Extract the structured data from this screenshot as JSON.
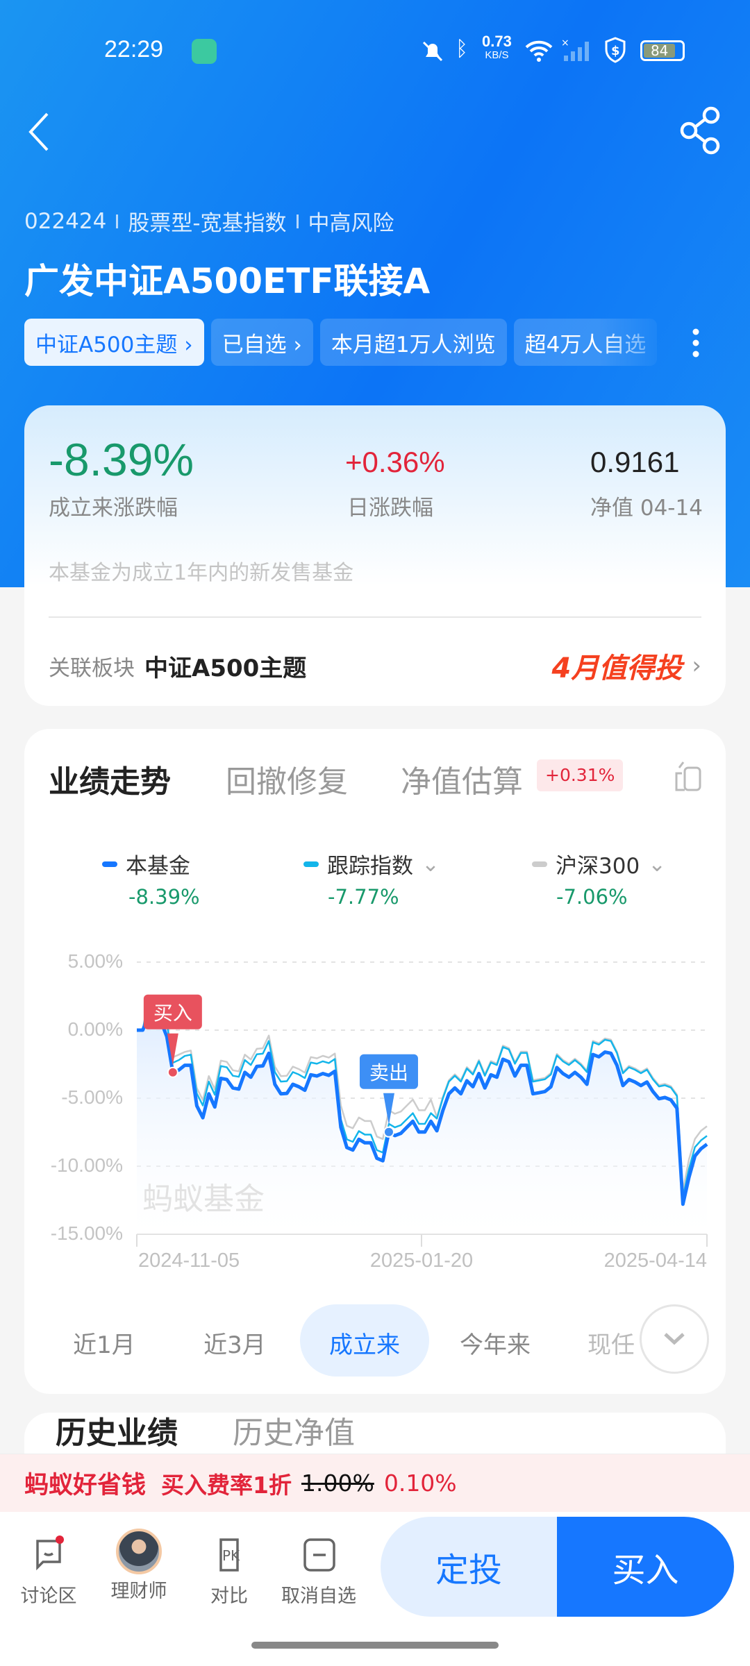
{
  "status_bar": {
    "time": "22:29",
    "net_speed": "0.73",
    "net_unit": "KB/S",
    "battery": "84"
  },
  "header": {
    "fund_code": "022424",
    "fund_type": "股票型-宽基指数",
    "risk": "中高风险",
    "title": "广发中证A500ETF联接A",
    "tags": [
      {
        "label": "中证A500主题 ›"
      },
      {
        "label": "已自选 ›"
      },
      {
        "label": "本月超1万人浏览"
      },
      {
        "label": "超4万人自选"
      }
    ]
  },
  "summary": {
    "since_inception": {
      "value": "-8.39%",
      "label": "成立来涨跌幅"
    },
    "daily": {
      "value": "+0.36%",
      "label": "日涨跌幅"
    },
    "nav": {
      "value": "0.9161",
      "label": "净值 04-14"
    },
    "note": "本基金为成立1年内的新发售基金",
    "sector_label": "关联板块",
    "sector_value": "中证A500主题",
    "promo": "4月值得投"
  },
  "chart_tabs": [
    {
      "label": "业绩走势",
      "active": true
    },
    {
      "label": "回撤修复"
    },
    {
      "label": "净值估算",
      "badge": "+0.31%"
    }
  ],
  "legend": [
    {
      "name": "本基金",
      "value": "-8.39%",
      "color": "#1677ff"
    },
    {
      "name": "跟踪指数",
      "value": "-7.77%",
      "color": "#13b5ea"
    },
    {
      "name": "沪深300",
      "value": "-7.06%",
      "color": "#cccccc"
    }
  ],
  "watermark": "蚂蚁基金",
  "chart_data": {
    "type": "line",
    "ylim": [
      -15,
      5
    ],
    "y_ticks": [
      "5.00%",
      "0.00%",
      "-5.00%",
      "-10.00%",
      "-15.00%"
    ],
    "y_tick_values": [
      5,
      0,
      -5,
      -10,
      -15
    ],
    "x_ticks": [
      "2024-11-05",
      "2025-01-20",
      "2025-04-14"
    ],
    "grid": true,
    "series": [
      {
        "name": "本基金",
        "color": "#1677ff",
        "values": [
          0,
          0,
          1.1,
          0.23,
          0.67,
          -0.47,
          -3.1,
          -2.93,
          -2.58,
          -2.58,
          -5.56,
          -6.44,
          -4.68,
          -5.65,
          -3.54,
          -3.63,
          -4.25,
          -4.33,
          -3.1,
          -3.46,
          -2.67,
          -2.63,
          -1.7,
          -3.98,
          -4.68,
          -4.65,
          -3.98,
          -4.16,
          -4.42,
          -3.28,
          -3.37,
          -3.19,
          -3.32,
          -3.02,
          -7.14,
          -8.63,
          -8.81,
          -8.02,
          -8.28,
          -8.28,
          -9.42,
          -9.6,
          -7.49,
          -7.75,
          -7.58,
          -7.14,
          -6.7,
          -7.49,
          -7.49,
          -6.7,
          -7.4,
          -5.91,
          -4.68,
          -4.25,
          -4.68,
          -3.72,
          -4.16,
          -3.19,
          -4.25,
          -3.28,
          -3.46,
          -2.14,
          -2.32,
          -3.37,
          -2.58,
          -2.58,
          -4.68,
          -4.6,
          -4.51,
          -4.16,
          -2.75,
          -3.19,
          -3.46,
          -3.1,
          -3.46,
          -3.98,
          -1.79,
          -1.96,
          -1.61,
          -1.7,
          -2.58,
          -4.07,
          -3.63,
          -3.81,
          -4.07,
          -3.81,
          -4.51,
          -5.04,
          -4.95,
          -5.12,
          -5.74,
          -12.79,
          -10.82,
          -9.25,
          -8.72,
          -8.39
        ]
      },
      {
        "name": "跟踪指数",
        "color": "#13b5ea",
        "values": [
          0,
          0,
          2.5,
          1.6,
          1.9,
          0.6,
          -2.4,
          -2.2,
          -1.9,
          -1.8,
          -4.66,
          -5.54,
          -3.78,
          -4.75,
          -2.64,
          -2.73,
          -3.35,
          -3.43,
          -2.2,
          -2.56,
          -1.77,
          -1.73,
          -0.8,
          -3.08,
          -3.78,
          -3.75,
          -3.08,
          -3.26,
          -3.52,
          -2.38,
          -2.47,
          -2.29,
          -2.42,
          -2.12,
          -6.54,
          -8.03,
          -8.21,
          -7.42,
          -7.68,
          -7.68,
          -8.82,
          -9.0,
          -6.89,
          -7.15,
          -6.98,
          -6.54,
          -6.1,
          -6.89,
          -6.89,
          -6.1,
          -6.5,
          -5.01,
          -3.78,
          -3.35,
          -3.78,
          -2.82,
          -3.26,
          -2.29,
          -3.35,
          -2.38,
          -2.56,
          -1.24,
          -1.42,
          -2.47,
          -1.68,
          -1.68,
          -3.78,
          -3.7,
          -3.61,
          -3.26,
          -1.85,
          -2.29,
          -2.56,
          -2.2,
          -2.56,
          -3.08,
          -0.89,
          -1.06,
          -0.71,
          -0.8,
          -1.68,
          -3.17,
          -2.73,
          -2.91,
          -3.17,
          -2.91,
          -3.61,
          -4.14,
          -4.05,
          -4.22,
          -4.84,
          -12.3,
          -10.2,
          -8.6,
          -8.1,
          -7.77
        ]
      },
      {
        "name": "沪深300",
        "color": "#cccccc",
        "values": [
          0,
          0,
          2.2,
          1.4,
          1.6,
          0.4,
          -2.0,
          -1.8,
          -1.6,
          -1.5,
          -4.26,
          -5.14,
          -3.38,
          -4.35,
          -2.24,
          -2.33,
          -2.95,
          -3.03,
          -1.8,
          -2.16,
          -1.37,
          -1.33,
          -0.4,
          -2.68,
          -3.38,
          -3.35,
          -2.68,
          -2.86,
          -3.12,
          -1.98,
          -2.07,
          -1.89,
          -2.02,
          -1.72,
          -5.54,
          -7.03,
          -7.21,
          -6.42,
          -6.68,
          -6.68,
          -7.82,
          -8.0,
          -5.89,
          -6.15,
          -5.98,
          -5.54,
          -5.1,
          -5.89,
          -5.89,
          -5.1,
          -6.4,
          -4.91,
          -3.68,
          -3.25,
          -3.68,
          -2.72,
          -3.16,
          -2.19,
          -3.25,
          -2.28,
          -2.46,
          -1.14,
          -1.32,
          -2.37,
          -1.58,
          -1.58,
          -3.68,
          -3.6,
          -3.51,
          -3.16,
          -1.75,
          -2.19,
          -2.46,
          -2.1,
          -2.46,
          -2.98,
          -0.79,
          -0.96,
          -0.61,
          -0.7,
          -1.58,
          -3.07,
          -2.63,
          -2.81,
          -3.07,
          -2.81,
          -3.51,
          -4.04,
          -3.95,
          -4.12,
          -4.74,
          -11.8,
          -9.5,
          -8.0,
          -7.4,
          -7.06
        ]
      }
    ],
    "markers": [
      {
        "label": "买入",
        "point": 6,
        "color": "#e8525e"
      },
      {
        "label": "卖出",
        "point": 42,
        "color": "#3d8ff5"
      }
    ]
  },
  "periods": [
    {
      "label": "近1月"
    },
    {
      "label": "近3月"
    },
    {
      "label": "成立来",
      "active": true
    },
    {
      "label": "今年来"
    },
    {
      "label": "现任"
    }
  ],
  "next_section": {
    "tabs": [
      "历史业绩",
      "历史净值"
    ]
  },
  "promo_bar": {
    "brand": "蚂蚁好省钱",
    "offer": "买入费率1折",
    "old_rate": "1.00%",
    "new_rate": "0.10%"
  },
  "bottom_nav": {
    "items": [
      {
        "label": "讨论区"
      },
      {
        "label": "理财师"
      },
      {
        "label": "对比"
      },
      {
        "label": "取消自选"
      }
    ],
    "dca": "定投",
    "buy": "买入"
  }
}
